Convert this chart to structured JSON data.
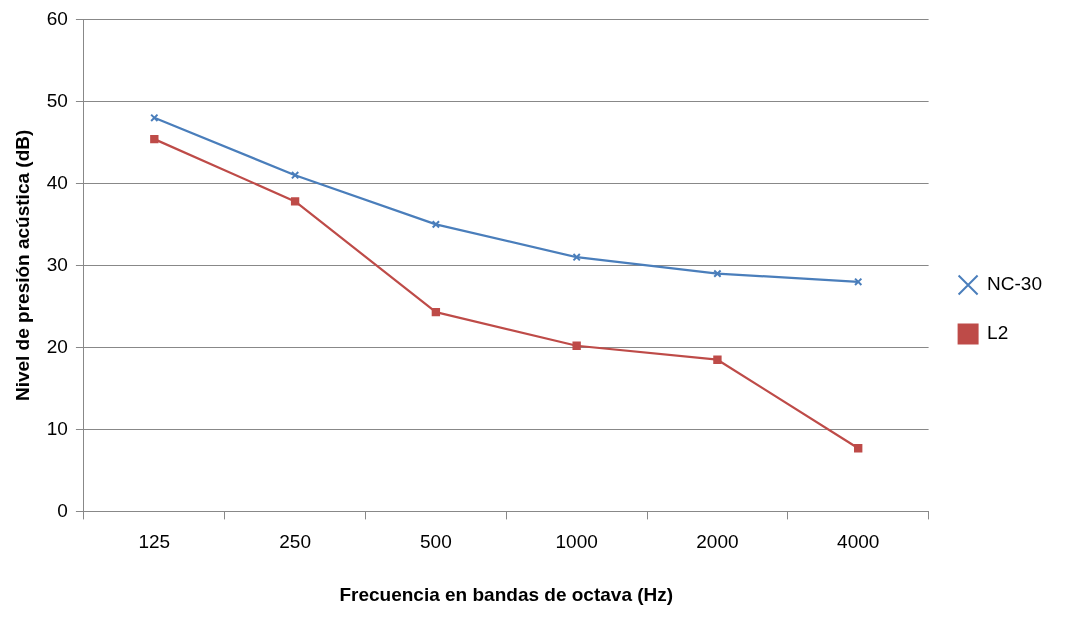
{
  "chart_data": {
    "type": "line",
    "xlabel": "Frecuencia en bandas de octava (Hz)",
    "ylabel": "Nivel de presión acústica (dB)",
    "categories": [
      "125",
      "250",
      "500",
      "1000",
      "2000",
      "4000"
    ],
    "series": [
      {
        "name": "NC-30",
        "color": "#4a7ebb",
        "marker": "cross",
        "values": [
          48,
          41,
          35,
          31,
          29,
          28
        ]
      },
      {
        "name": "L2",
        "color": "#be4b48",
        "marker": "square",
        "values": [
          45.4,
          37.8,
          24.3,
          20.2,
          18.5,
          7.7
        ]
      }
    ],
    "ylim": [
      0,
      60
    ],
    "yticks": [
      0,
      10,
      20,
      30,
      40,
      50,
      60
    ],
    "grid": "y",
    "legend": "right",
    "line_style": "solid"
  }
}
